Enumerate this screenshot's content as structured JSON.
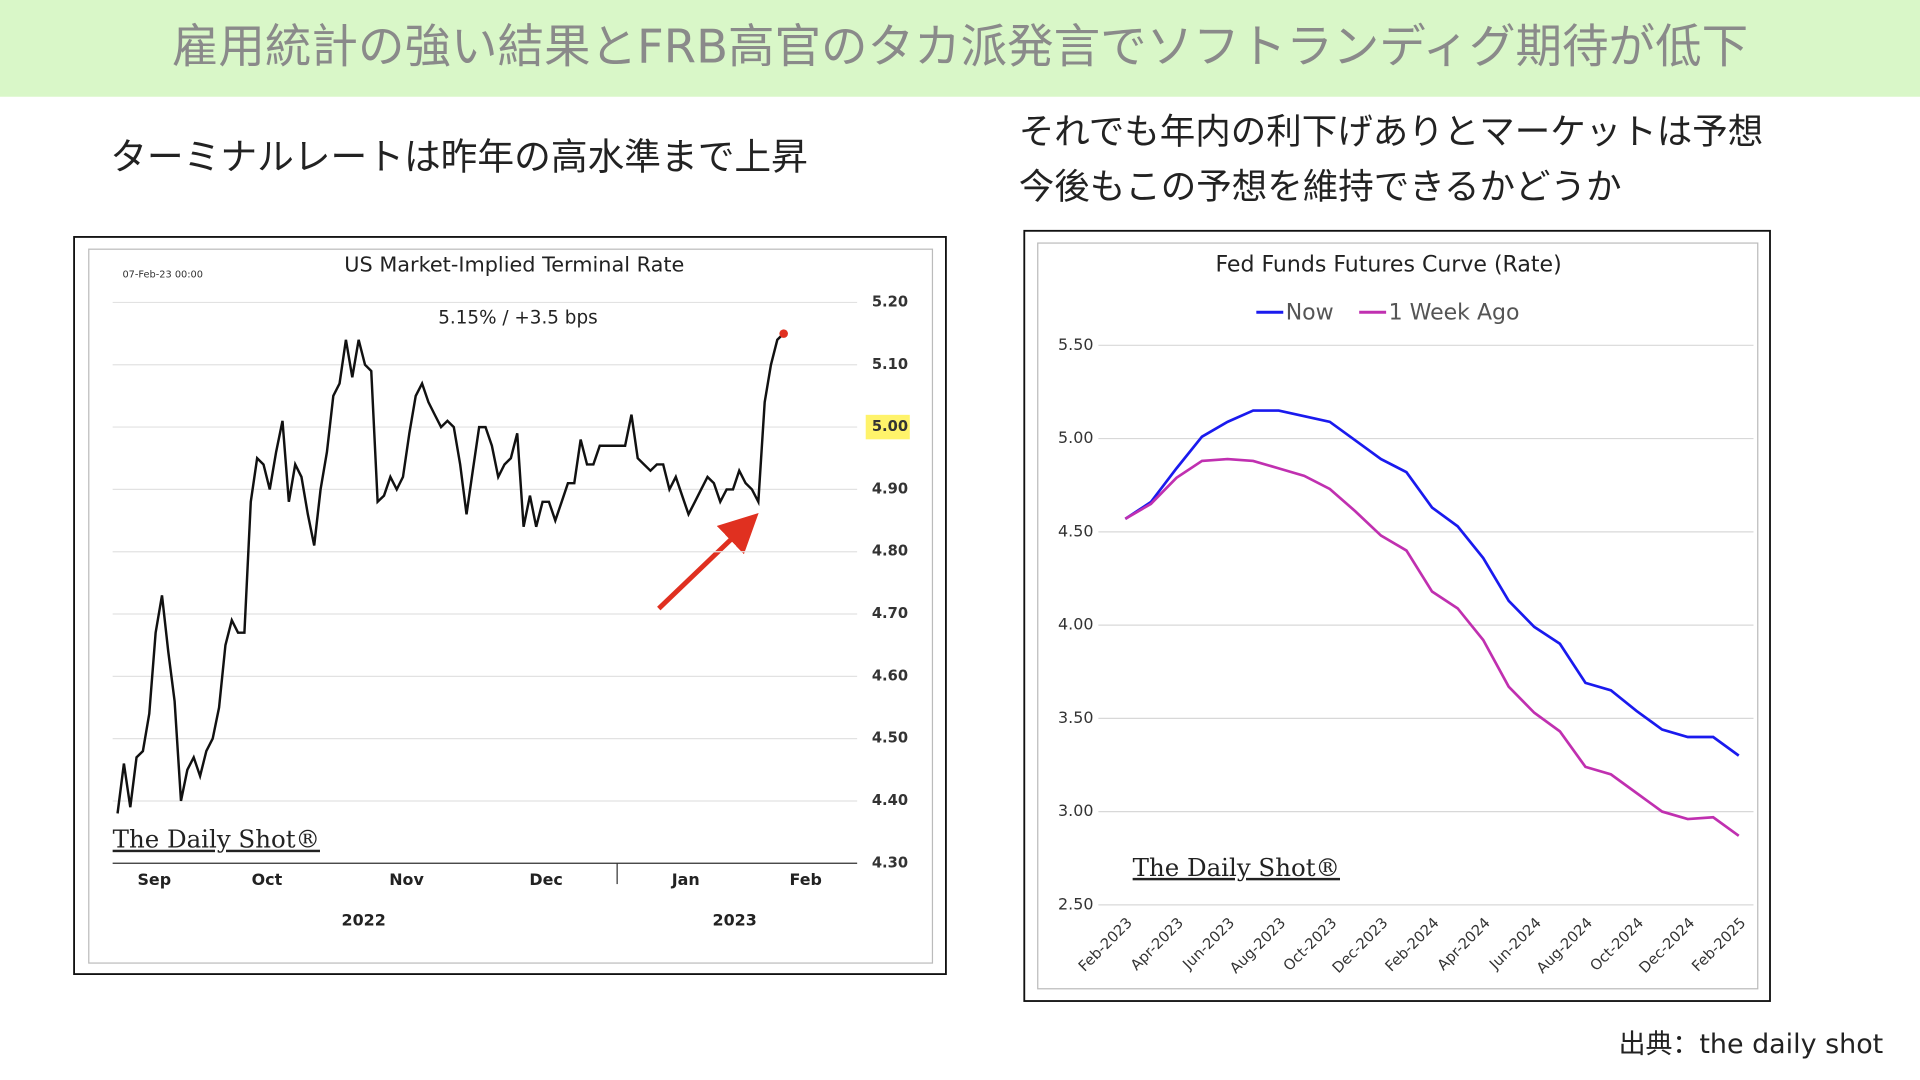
{
  "header": {
    "title": "雇用統計の強い結果とFRB高官のタカ派発言でソフトランディグ期待が低下"
  },
  "left_caption": "ターミナルレートは昨年の高水準まで上昇",
  "right_caption": [
    "それでも年内の利下げありとマーケットは予想",
    "今後もこの予想を維持できるかどうか"
  ],
  "source": "出典：the daily shot",
  "chart_data": [
    {
      "type": "line",
      "title": "US Market-Implied Terminal Rate",
      "annotation": "5.15%  /  +3.5 bps",
      "timestamp": "07-Feb-23 00:00",
      "watermark": "The Daily Shot®",
      "color": "#111111",
      "end_marker_color": "#e03020",
      "values": [
        4.38,
        4.46,
        4.39,
        4.47,
        4.48,
        4.54,
        4.67,
        4.73,
        4.64,
        4.56,
        4.4,
        4.45,
        4.47,
        4.44,
        4.48,
        4.5,
        4.55,
        4.65,
        4.69,
        4.67,
        4.67,
        4.88,
        4.95,
        4.94,
        4.9,
        4.96,
        5.01,
        4.88,
        4.94,
        4.92,
        4.86,
        4.81,
        4.9,
        4.96,
        5.05,
        5.07,
        5.14,
        5.08,
        5.14,
        5.1,
        5.09,
        4.88,
        4.89,
        4.92,
        4.9,
        4.92,
        4.99,
        5.05,
        5.07,
        5.04,
        5.02,
        5.0,
        5.01,
        5.0,
        4.94,
        4.86,
        4.93,
        5.0,
        5.0,
        4.97,
        4.92,
        4.94,
        4.95,
        4.99,
        4.84,
        4.89,
        4.84,
        4.88,
        4.88,
        4.85,
        4.88,
        4.91,
        4.91,
        4.98,
        4.94,
        4.94,
        4.97,
        4.97,
        4.97,
        4.97,
        4.97,
        5.02,
        4.95,
        4.94,
        4.93,
        4.94,
        4.94,
        4.9,
        4.92,
        4.89,
        4.86,
        4.88,
        4.9,
        4.92,
        4.91,
        4.88,
        4.9,
        4.9,
        4.93,
        4.91,
        4.9,
        4.88,
        5.04,
        5.1,
        5.14,
        5.15
      ],
      "x_labels": [
        "Sep",
        "Oct",
        "Nov",
        "Dec",
        "Jan",
        "Feb"
      ],
      "year_labels": [
        "2022",
        "2023"
      ],
      "ylim": [
        4.3,
        5.2
      ],
      "yticks": [
        {
          "value": 4.3,
          "label": "4.30"
        },
        {
          "value": 4.4,
          "label": "4.40"
        },
        {
          "value": 4.5,
          "label": "4.50"
        },
        {
          "value": 4.6,
          "label": "4.60"
        },
        {
          "value": 4.7,
          "label": "4.70"
        },
        {
          "value": 4.8,
          "label": "4.80"
        },
        {
          "value": 4.9,
          "label": "4.90"
        },
        {
          "value": 5.0,
          "label": "5.00",
          "highlight": true
        },
        {
          "value": 5.1,
          "label": "5.10"
        },
        {
          "value": 5.2,
          "label": "5.20"
        }
      ],
      "grid": true,
      "y_axis_side": "right"
    },
    {
      "type": "line",
      "title": "Fed Funds Futures Curve (Rate)",
      "watermark": "The Daily Shot®",
      "categories": [
        "Feb-2023",
        null,
        "Apr-2023",
        null,
        "Jun-2023",
        null,
        "Aug-2023",
        null,
        "Oct-2023",
        null,
        "Dec-2023",
        null,
        "Feb-2024",
        null,
        "Apr-2024",
        null,
        "Jun-2024",
        null,
        "Aug-2024",
        null,
        "Oct-2024",
        null,
        "Dec-2024",
        null,
        "Feb-2025"
      ],
      "series": [
        {
          "name": "Now",
          "color": "#1a1aee",
          "values": [
            4.57,
            4.66,
            4.84,
            5.01,
            5.09,
            5.15,
            5.15,
            5.12,
            5.09,
            4.99,
            4.89,
            4.82,
            4.63,
            4.53,
            4.36,
            4.13,
            3.99,
            3.9,
            3.69,
            3.65,
            3.54,
            3.44,
            3.4,
            3.4,
            3.3
          ]
        },
        {
          "name": "1 Week Ago",
          "color": "#c030b0",
          "values": [
            4.57,
            4.65,
            4.79,
            4.88,
            4.89,
            4.88,
            4.84,
            4.8,
            4.73,
            4.61,
            4.48,
            4.4,
            4.18,
            4.09,
            3.92,
            3.67,
            3.53,
            3.43,
            3.24,
            3.2,
            3.1,
            3.0,
            2.96,
            2.97,
            2.87
          ]
        }
      ],
      "ylim": [
        2.5,
        5.5
      ],
      "yticks": [
        {
          "value": 2.5,
          "label": "2.50"
        },
        {
          "value": 3.0,
          "label": "3.00"
        },
        {
          "value": 3.5,
          "label": "3.50"
        },
        {
          "value": 4.0,
          "label": "4.00"
        },
        {
          "value": 4.5,
          "label": "4.50"
        },
        {
          "value": 5.0,
          "label": "5.00"
        },
        {
          "value": 5.5,
          "label": "5.50"
        }
      ],
      "grid": true,
      "legend": "top"
    }
  ]
}
